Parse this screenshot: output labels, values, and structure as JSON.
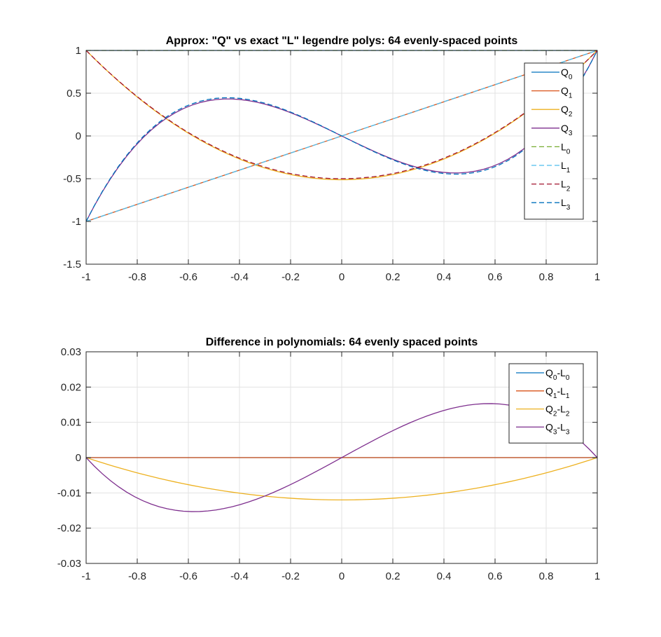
{
  "chart_data": [
    {
      "type": "line",
      "title": "Approx: \"Q\" vs exact \"L\" legendre polys: 64 evenly-spaced points",
      "xlabel": "",
      "ylabel": "",
      "xlim": [
        -1,
        1
      ],
      "ylim": [
        -1.5,
        1
      ],
      "xticks": [
        -1,
        -0.8,
        -0.6,
        -0.4,
        -0.2,
        0,
        0.2,
        0.4,
        0.6,
        0.8,
        1
      ],
      "xtick_labels": [
        "-1",
        "-0.8",
        "-0.6",
        "-0.4",
        "-0.2",
        "0",
        "0.2",
        "0.4",
        "0.6",
        "0.8",
        "1"
      ],
      "yticks": [
        -1.5,
        -1,
        -0.5,
        0,
        0.5,
        1
      ],
      "ytick_labels": [
        "-1.5",
        "-1",
        "-0.5",
        "0",
        "0.5",
        "1"
      ],
      "grid": true,
      "legend_position": "top-right",
      "n_points": 64,
      "series": [
        {
          "name": "Q",
          "sub": "0",
          "style": "solid",
          "color": "#0072BD",
          "kind": "Q0"
        },
        {
          "name": "Q",
          "sub": "1",
          "style": "solid",
          "color": "#D95319",
          "kind": "Q1"
        },
        {
          "name": "Q",
          "sub": "2",
          "style": "solid",
          "color": "#EDB120",
          "kind": "Q2"
        },
        {
          "name": "Q",
          "sub": "3",
          "style": "solid",
          "color": "#7E2F8E",
          "kind": "Q3"
        },
        {
          "name": "L",
          "sub": "0",
          "style": "dashed",
          "color": "#77AC30",
          "kind": "L0"
        },
        {
          "name": "L",
          "sub": "1",
          "style": "dashed",
          "color": "#4DBEEE",
          "kind": "L1"
        },
        {
          "name": "L",
          "sub": "2",
          "style": "dashed",
          "color": "#A2142F",
          "kind": "L2"
        },
        {
          "name": "L",
          "sub": "3",
          "style": "dashed",
          "color": "#0072BD",
          "kind": "L3"
        }
      ]
    },
    {
      "type": "line",
      "title": "Difference in polynomials: 64 evenly spaced points",
      "xlabel": "",
      "ylabel": "",
      "xlim": [
        -1,
        1
      ],
      "ylim": [
        -0.03,
        0.03
      ],
      "xticks": [
        -1,
        -0.8,
        -0.6,
        -0.4,
        -0.2,
        0,
        0.2,
        0.4,
        0.6,
        0.8,
        1
      ],
      "xtick_labels": [
        "-1",
        "-0.8",
        "-0.6",
        "-0.4",
        "-0.2",
        "0",
        "0.2",
        "0.4",
        "0.6",
        "0.8",
        "1"
      ],
      "yticks": [
        -0.03,
        -0.02,
        -0.01,
        0,
        0.01,
        0.02,
        0.03
      ],
      "ytick_labels": [
        "-0.03",
        "-0.02",
        "-0.01",
        "0",
        "0.01",
        "0.02",
        "0.03"
      ],
      "grid": true,
      "legend_position": "top-right",
      "n_points": 64,
      "series": [
        {
          "name": "Q",
          "sub": "0",
          "name2": "-L",
          "sub2": "0",
          "style": "solid",
          "color": "#0072BD",
          "kind": "D0"
        },
        {
          "name": "Q",
          "sub": "1",
          "name2": "-L",
          "sub2": "1",
          "style": "solid",
          "color": "#D95319",
          "kind": "D1"
        },
        {
          "name": "Q",
          "sub": "2",
          "name2": "-L",
          "sub2": "2",
          "style": "solid",
          "color": "#EDB120",
          "kind": "D2"
        },
        {
          "name": "Q",
          "sub": "3",
          "name2": "-L",
          "sub2": "3",
          "style": "solid",
          "color": "#7E2F8E",
          "kind": "D3"
        }
      ]
    }
  ]
}
